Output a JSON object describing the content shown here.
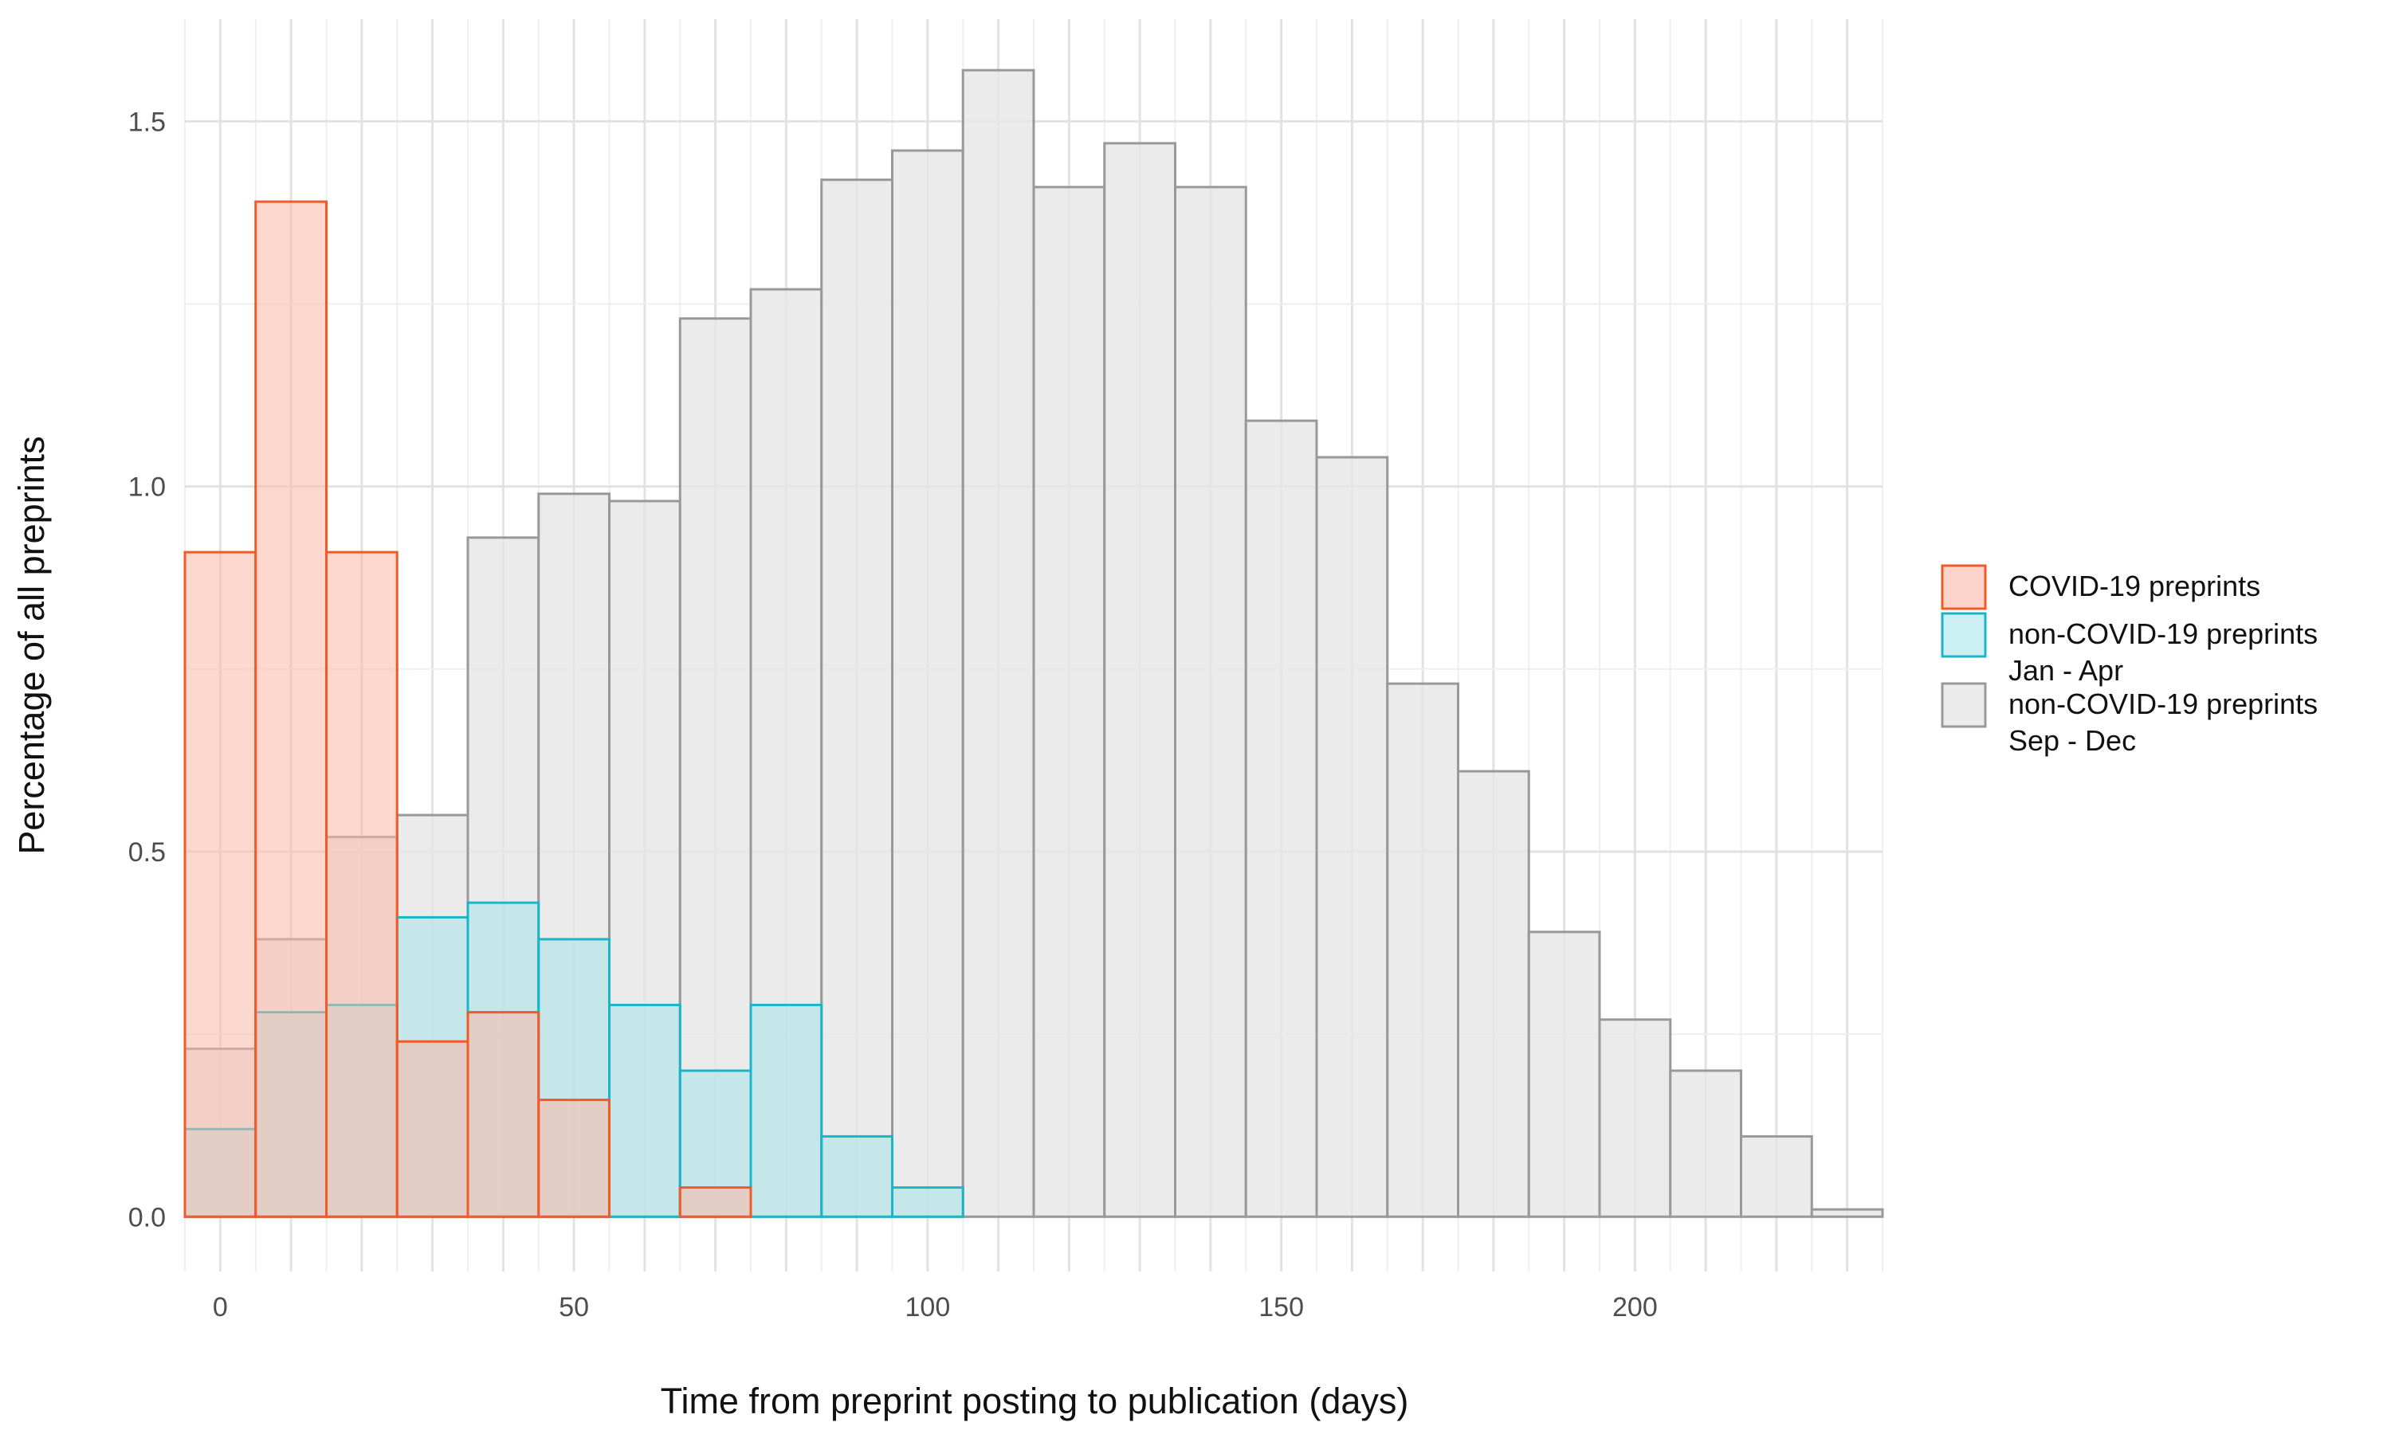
{
  "chart_data": {
    "type": "histogram",
    "xlabel": "Time from preprint posting to publication (days)",
    "ylabel": "Percentage of all preprints",
    "xlim": [
      -5,
      235
    ],
    "ylim": [
      -0.075,
      1.64
    ],
    "bin_width": 10,
    "x_ticks": [
      0,
      50,
      100,
      150,
      200
    ],
    "x_tick_labels": [
      "0",
      "50",
      "100",
      "150",
      "200"
    ],
    "y_ticks": [
      0.0,
      0.5,
      1.0,
      1.5
    ],
    "y_tick_labels": [
      "0.0",
      "0.5",
      "1.0",
      "1.5"
    ],
    "grid": true,
    "legend_position": "right",
    "series": [
      {
        "name": "non-COVID-19 preprints\nSep - Dec",
        "legend_lines": [
          "non-COVID-19 preprints",
          "Sep - Dec"
        ],
        "fill": "#e6e6e6",
        "stroke": "#999999",
        "bin_starts": [
          -5,
          5,
          15,
          25,
          35,
          45,
          55,
          65,
          75,
          85,
          95,
          105,
          115,
          125,
          135,
          145,
          155,
          165,
          175,
          185,
          195,
          205,
          215,
          225
        ],
        "values": [
          0.23,
          0.38,
          0.52,
          0.55,
          0.93,
          0.99,
          0.98,
          1.23,
          1.27,
          1.42,
          1.46,
          1.57,
          1.41,
          1.47,
          1.41,
          1.09,
          1.04,
          0.73,
          0.61,
          0.39,
          0.27,
          0.2,
          0.11,
          0.01
        ]
      },
      {
        "name": "non-COVID-19 preprints\nJan - Apr",
        "legend_lines": [
          "non-COVID-19 preprints",
          "Jan - Apr"
        ],
        "fill": "#a8e4ea",
        "stroke": "#1cb4c9",
        "bin_starts": [
          -5,
          5,
          15,
          25,
          35,
          45,
          55,
          65,
          75,
          85,
          95
        ],
        "values": [
          0.12,
          0.28,
          0.29,
          0.41,
          0.43,
          0.38,
          0.29,
          0.2,
          0.29,
          0.11,
          0.04
        ]
      },
      {
        "name": "COVID-19 preprints",
        "legend_lines": [
          "COVID-19 preprints"
        ],
        "fill": "#fcb8a6",
        "stroke": "#f15a29",
        "bin_starts": [
          -5,
          5,
          15,
          25,
          35,
          45,
          55,
          65
        ],
        "values": [
          0.91,
          1.39,
          0.91,
          0.24,
          0.28,
          0.16,
          0.0,
          0.04
        ]
      }
    ],
    "legend_order": [
      2,
      1,
      0
    ]
  }
}
